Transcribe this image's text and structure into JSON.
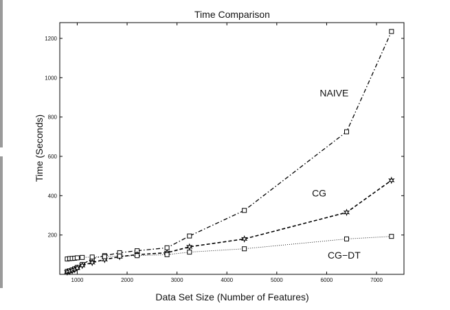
{
  "chart_data": {
    "type": "line",
    "title": "Time Comparison",
    "xlabel": "Data Set Size (Number of Features)",
    "ylabel": "Time (Seconds)",
    "xlim": [
      650,
      7550
    ],
    "ylim": [
      0,
      1280
    ],
    "xticks": [
      1000,
      2000,
      3000,
      4000,
      5000,
      6000,
      7000
    ],
    "yticks": [
      200,
      400,
      600,
      800,
      1000,
      1200
    ],
    "grid": false,
    "series": [
      {
        "name": "NAIVE",
        "line_style": "dash-dot",
        "marker": "square",
        "x": [
          800,
          850,
          900,
          950,
          1000,
          1100,
          1300,
          1550,
          1850,
          2200,
          2800,
          3250,
          4350,
          6400,
          7300
        ],
        "y": [
          15,
          18,
          22,
          28,
          35,
          50,
          80,
          95,
          110,
          120,
          135,
          195,
          325,
          725,
          1235
        ]
      },
      {
        "name": "CG",
        "line_style": "dashed",
        "marker": "star",
        "x": [
          800,
          850,
          900,
          950,
          1000,
          1100,
          1300,
          1550,
          1850,
          2200,
          2800,
          3250,
          4350,
          6400,
          7300
        ],
        "y": [
          12,
          15,
          20,
          25,
          32,
          45,
          60,
          75,
          90,
          100,
          110,
          140,
          180,
          315,
          478
        ]
      },
      {
        "name": "CG−DT",
        "line_style": "dotted",
        "marker": "square",
        "x": [
          800,
          850,
          900,
          950,
          1000,
          1100,
          1300,
          1550,
          1850,
          2200,
          2800,
          3250,
          4350,
          6400,
          7300
        ],
        "y": [
          78,
          80,
          81,
          82,
          84,
          86,
          88,
          90,
          93,
          95,
          100,
          113,
          130,
          180,
          193
        ]
      }
    ],
    "annotations": [
      {
        "text": "NAIVE",
        "x": 6150,
        "y": 905
      },
      {
        "text": "CG",
        "x": 5850,
        "y": 395
      },
      {
        "text": "CG−DT",
        "x": 6350,
        "y": 80
      }
    ]
  }
}
